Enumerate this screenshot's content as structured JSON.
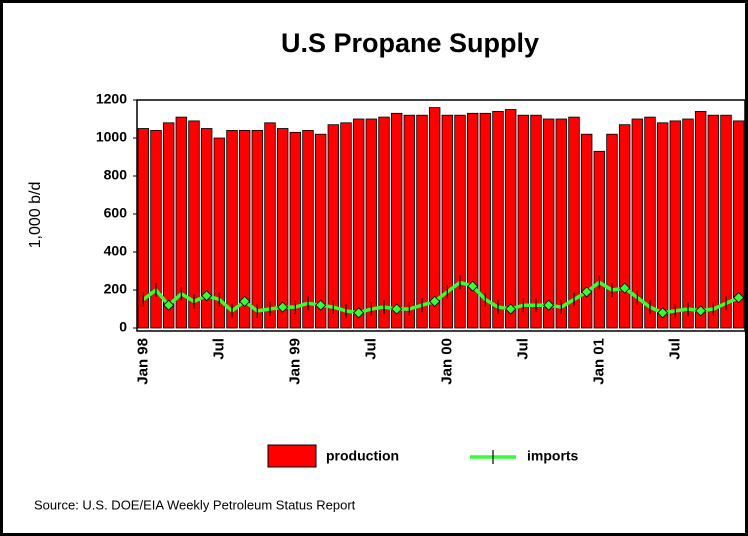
{
  "chart_data": {
    "type": "bar_line",
    "title": "U.S Propane Supply",
    "y_axis_label": "1,000 b/d",
    "source": "Source: U.S. DOE/EIA Weekly Petroleum Status Report",
    "categories": [
      "Jan 98",
      null,
      null,
      null,
      null,
      null,
      "Jul",
      null,
      null,
      null,
      null,
      null,
      "Jan 99",
      null,
      null,
      null,
      null,
      null,
      "Jul",
      null,
      null,
      null,
      null,
      null,
      "Jan 00",
      null,
      null,
      null,
      null,
      null,
      "Jul",
      null,
      null,
      null,
      null,
      null,
      "Jan 01",
      null,
      null,
      null,
      null,
      null,
      "Jul",
      null,
      null,
      null,
      null,
      null
    ],
    "series": [
      {
        "name": "production",
        "color": "#ff0000",
        "values": [
          1050,
          1040,
          1080,
          1110,
          1090,
          1050,
          1000,
          1040,
          1040,
          1040,
          1080,
          1050,
          1030,
          1040,
          1020,
          1070,
          1080,
          1100,
          1100,
          1110,
          1130,
          1120,
          1120,
          1160,
          1120,
          1120,
          1130,
          1130,
          1140,
          1150,
          1120,
          1120,
          1100,
          1100,
          1110,
          1020,
          930,
          1020,
          1070,
          1100,
          1110,
          1080,
          1090,
          1100,
          1140,
          1120,
          1120,
          1090
        ]
      },
      {
        "name": "imports",
        "color": "#33ff33",
        "values": [
          150,
          200,
          120,
          180,
          140,
          170,
          150,
          90,
          140,
          90,
          100,
          110,
          110,
          130,
          120,
          110,
          90,
          80,
          100,
          110,
          100,
          100,
          120,
          140,
          190,
          240,
          220,
          150,
          110,
          100,
          120,
          120,
          120,
          110,
          150,
          190,
          240,
          200,
          210,
          160,
          110,
          80,
          90,
          100,
          90,
          100,
          130,
          160
        ]
      }
    ],
    "ylim": [
      0,
      1200
    ],
    "yticks": [
      0,
      200,
      400,
      600,
      800,
      1000,
      1200
    ]
  }
}
